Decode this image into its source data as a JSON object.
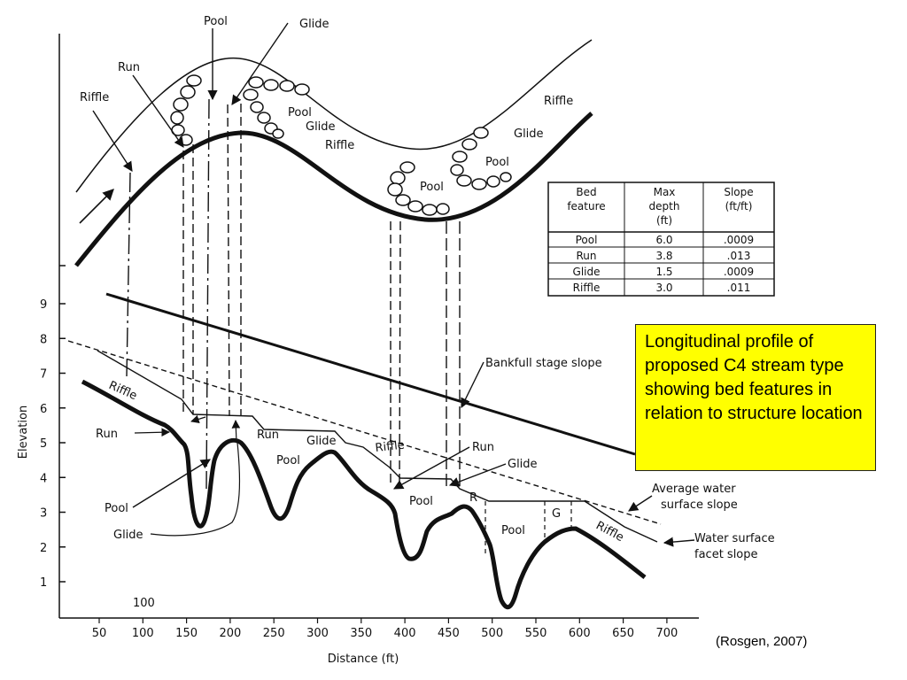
{
  "plan_view": {
    "labels": {
      "pool_top": "Pool",
      "glide_top": "Glide",
      "run": "Run",
      "riffle_left": "Riffle",
      "pool_mid": "Pool",
      "glide_mid": "Glide",
      "riffle_mid": "Riffle",
      "riffle_right": "Riffle",
      "glide_right": "Glide",
      "pool_right": "Pool",
      "pool_bottom": "Pool"
    }
  },
  "bed_table": {
    "headers": [
      [
        "Bed",
        "feature"
      ],
      [
        "Max",
        "depth",
        "(ft)"
      ],
      [
        "Slope",
        "(ft/ft)"
      ]
    ],
    "rows": [
      [
        "Pool",
        "6.0",
        ".0009"
      ],
      [
        "Run",
        "3.8",
        ".013"
      ],
      [
        "Glide",
        "1.5",
        ".0009"
      ],
      [
        "Riffle",
        "3.0",
        ".011"
      ]
    ]
  },
  "profile": {
    "y_axis_label": "Elevation",
    "x_axis_label": "Distance (ft)",
    "y_ticks": [
      "1",
      "2",
      "3",
      "4",
      "5",
      "6",
      "7",
      "8",
      "9"
    ],
    "x_ticks": [
      "50",
      "100",
      "150",
      "200",
      "250",
      "300",
      "350",
      "400",
      "450",
      "500",
      "550",
      "600",
      "650",
      "700"
    ],
    "corner_label": "100",
    "labels": {
      "riffle_left": "Riffle",
      "run_left": "Run",
      "pool_left": "Pool",
      "glide_left": "Glide",
      "run_mid": "Run",
      "glide_mid": "Glide",
      "pool_mid": "Pool",
      "riffle_mid": "Riffle",
      "run_right": "Run",
      "glide_right": "Glide",
      "pool_right1": "Pool",
      "r_label": "R",
      "pool_right2": "Pool",
      "g_label": "G",
      "riffle_right": "Riffle"
    },
    "callouts": {
      "bankfull": "Bankfull stage slope",
      "avg_water_1": "Average water",
      "avg_water_2": "surface slope",
      "facet_1": "Water surface",
      "facet_2": "facet slope"
    }
  },
  "note": {
    "text": "Longitudinal profile of proposed C4 stream type showing bed features in relation to structure location",
    "background": "#ffff00"
  },
  "citation": "(Rosgen, 2007)"
}
